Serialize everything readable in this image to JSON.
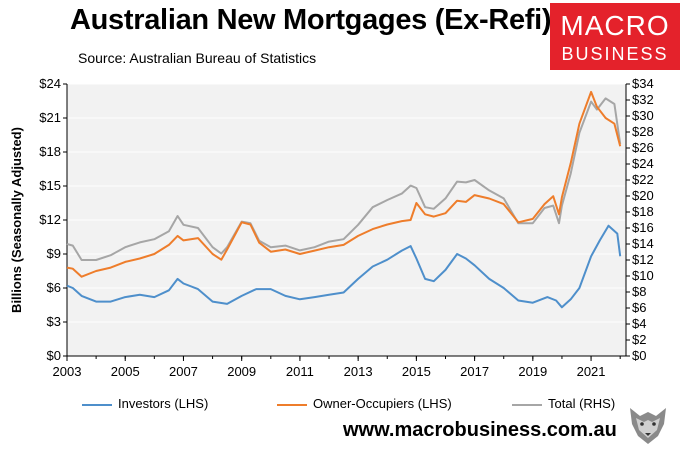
{
  "header": {
    "title": "Australian New Mortgages (Ex-Refi)",
    "source": "Source: Australian Bureau of Statistics"
  },
  "logo": {
    "line1": "MACRO",
    "line2": "BUSINESS"
  },
  "footer": {
    "url": "www.macrobusiness.com.au"
  },
  "colors": {
    "investors": "#4e8fcb",
    "owner_occupiers": "#ee7d2b",
    "total": "#a6a6a6",
    "plot_bg": "#f2f2f2",
    "brand": "#e4222b"
  },
  "chart_data": {
    "type": "line",
    "title": "Australian New Mortgages (Ex-Refi)",
    "ylabel": "Billions (Seasonally Adjusted)",
    "xlim": [
      2003.0,
      2022.2
    ],
    "ylim_left": [
      0,
      24
    ],
    "ylim_right": [
      0,
      34
    ],
    "x_ticks": [
      "2003",
      "2005",
      "2007",
      "2009",
      "2011",
      "2013",
      "2015",
      "2017",
      "2019",
      "2021"
    ],
    "y_left_ticks": [
      "$0",
      "$3",
      "$6",
      "$9",
      "$12",
      "$15",
      "$18",
      "$21",
      "$24"
    ],
    "y_right_ticks": [
      "$0",
      "$2",
      "$4",
      "$6",
      "$8",
      "$10",
      "$12",
      "$14",
      "$16",
      "$18",
      "$20",
      "$22",
      "$24",
      "$26",
      "$28",
      "$30",
      "$32",
      "$34"
    ],
    "series": [
      {
        "name": "Investors (LHS)",
        "axis": "left",
        "x": [
          2003.0,
          2003.2,
          2003.5,
          2004.0,
          2004.5,
          2005.0,
          2005.5,
          2006.0,
          2006.5,
          2006.8,
          2007.0,
          2007.5,
          2008.0,
          2008.5,
          2009.0,
          2009.5,
          2010.0,
          2010.5,
          2011.0,
          2011.5,
          2012.0,
          2012.5,
          2013.0,
          2013.5,
          2014.0,
          2014.5,
          2014.8,
          2015.0,
          2015.3,
          2015.6,
          2016.0,
          2016.4,
          2016.7,
          2017.0,
          2017.5,
          2018.0,
          2018.5,
          2019.0,
          2019.5,
          2019.8,
          2020.0,
          2020.3,
          2020.6,
          2021.0,
          2021.3,
          2021.6,
          2021.9,
          2022.0
        ],
        "y": [
          6.2,
          6.0,
          5.3,
          4.8,
          4.8,
          5.2,
          5.4,
          5.2,
          5.8,
          6.8,
          6.4,
          5.9,
          4.8,
          4.6,
          5.3,
          5.9,
          5.9,
          5.3,
          5.0,
          5.2,
          5.4,
          5.6,
          6.8,
          7.9,
          8.5,
          9.3,
          9.7,
          8.6,
          6.8,
          6.6,
          7.6,
          9.0,
          8.6,
          8.0,
          6.8,
          6.0,
          4.9,
          4.7,
          5.2,
          4.9,
          4.3,
          5.0,
          6.0,
          8.8,
          10.2,
          11.5,
          10.8,
          8.8
        ]
      },
      {
        "name": "Owner-Occupiers (LHS)",
        "axis": "left",
        "x": [
          2003.0,
          2003.2,
          2003.5,
          2004.0,
          2004.5,
          2005.0,
          2005.5,
          2006.0,
          2006.5,
          2006.8,
          2007.0,
          2007.5,
          2008.0,
          2008.3,
          2008.5,
          2009.0,
          2009.3,
          2009.6,
          2010.0,
          2010.5,
          2011.0,
          2011.5,
          2012.0,
          2012.5,
          2013.0,
          2013.5,
          2014.0,
          2014.5,
          2014.8,
          2015.0,
          2015.3,
          2015.6,
          2016.0,
          2016.4,
          2016.7,
          2017.0,
          2017.5,
          2018.0,
          2018.5,
          2019.0,
          2019.4,
          2019.7,
          2019.9,
          2020.0,
          2020.3,
          2020.6,
          2021.0,
          2021.2,
          2021.5,
          2021.8,
          2022.0
        ],
        "y": [
          7.8,
          7.7,
          7.0,
          7.5,
          7.8,
          8.3,
          8.6,
          9.0,
          9.8,
          10.6,
          10.2,
          10.4,
          9.0,
          8.5,
          9.4,
          11.8,
          11.6,
          10.0,
          9.2,
          9.4,
          9.0,
          9.3,
          9.6,
          9.8,
          10.6,
          11.2,
          11.6,
          11.9,
          12.0,
          13.5,
          12.5,
          12.3,
          12.6,
          13.7,
          13.6,
          14.2,
          13.9,
          13.4,
          11.8,
          12.1,
          13.4,
          14.1,
          12.5,
          14.0,
          17.0,
          20.5,
          23.3,
          22.0,
          21.0,
          20.5,
          18.5
        ]
      },
      {
        "name": "Total (RHS)",
        "axis": "right",
        "x": [
          2003.0,
          2003.2,
          2003.5,
          2004.0,
          2004.5,
          2005.0,
          2005.5,
          2006.0,
          2006.5,
          2006.8,
          2007.0,
          2007.5,
          2008.0,
          2008.3,
          2008.5,
          2009.0,
          2009.3,
          2009.6,
          2010.0,
          2010.5,
          2011.0,
          2011.5,
          2012.0,
          2012.5,
          2013.0,
          2013.5,
          2014.0,
          2014.5,
          2014.8,
          2015.0,
          2015.3,
          2015.6,
          2016.0,
          2016.4,
          2016.7,
          2017.0,
          2017.5,
          2018.0,
          2018.5,
          2019.0,
          2019.4,
          2019.7,
          2019.9,
          2020.0,
          2020.3,
          2020.6,
          2021.0,
          2021.2,
          2021.5,
          2021.8,
          2022.0
        ],
        "y": [
          14.0,
          13.8,
          12.0,
          12.0,
          12.6,
          13.6,
          14.2,
          14.6,
          15.6,
          17.5,
          16.4,
          16.0,
          13.6,
          12.8,
          13.6,
          16.8,
          16.6,
          14.4,
          13.6,
          13.8,
          13.2,
          13.6,
          14.3,
          14.6,
          16.4,
          18.6,
          19.5,
          20.3,
          21.3,
          21.0,
          18.6,
          18.4,
          19.7,
          21.8,
          21.7,
          22.0,
          20.7,
          19.7,
          16.6,
          16.6,
          18.5,
          18.8,
          16.6,
          18.8,
          22.8,
          27.9,
          31.8,
          30.8,
          32.2,
          31.5,
          26.5
        ]
      }
    ]
  },
  "legend": {
    "investors": "Investors (LHS)",
    "owner_occupiers": "Owner-Occupiers (LHS)",
    "total": "Total (RHS)"
  }
}
